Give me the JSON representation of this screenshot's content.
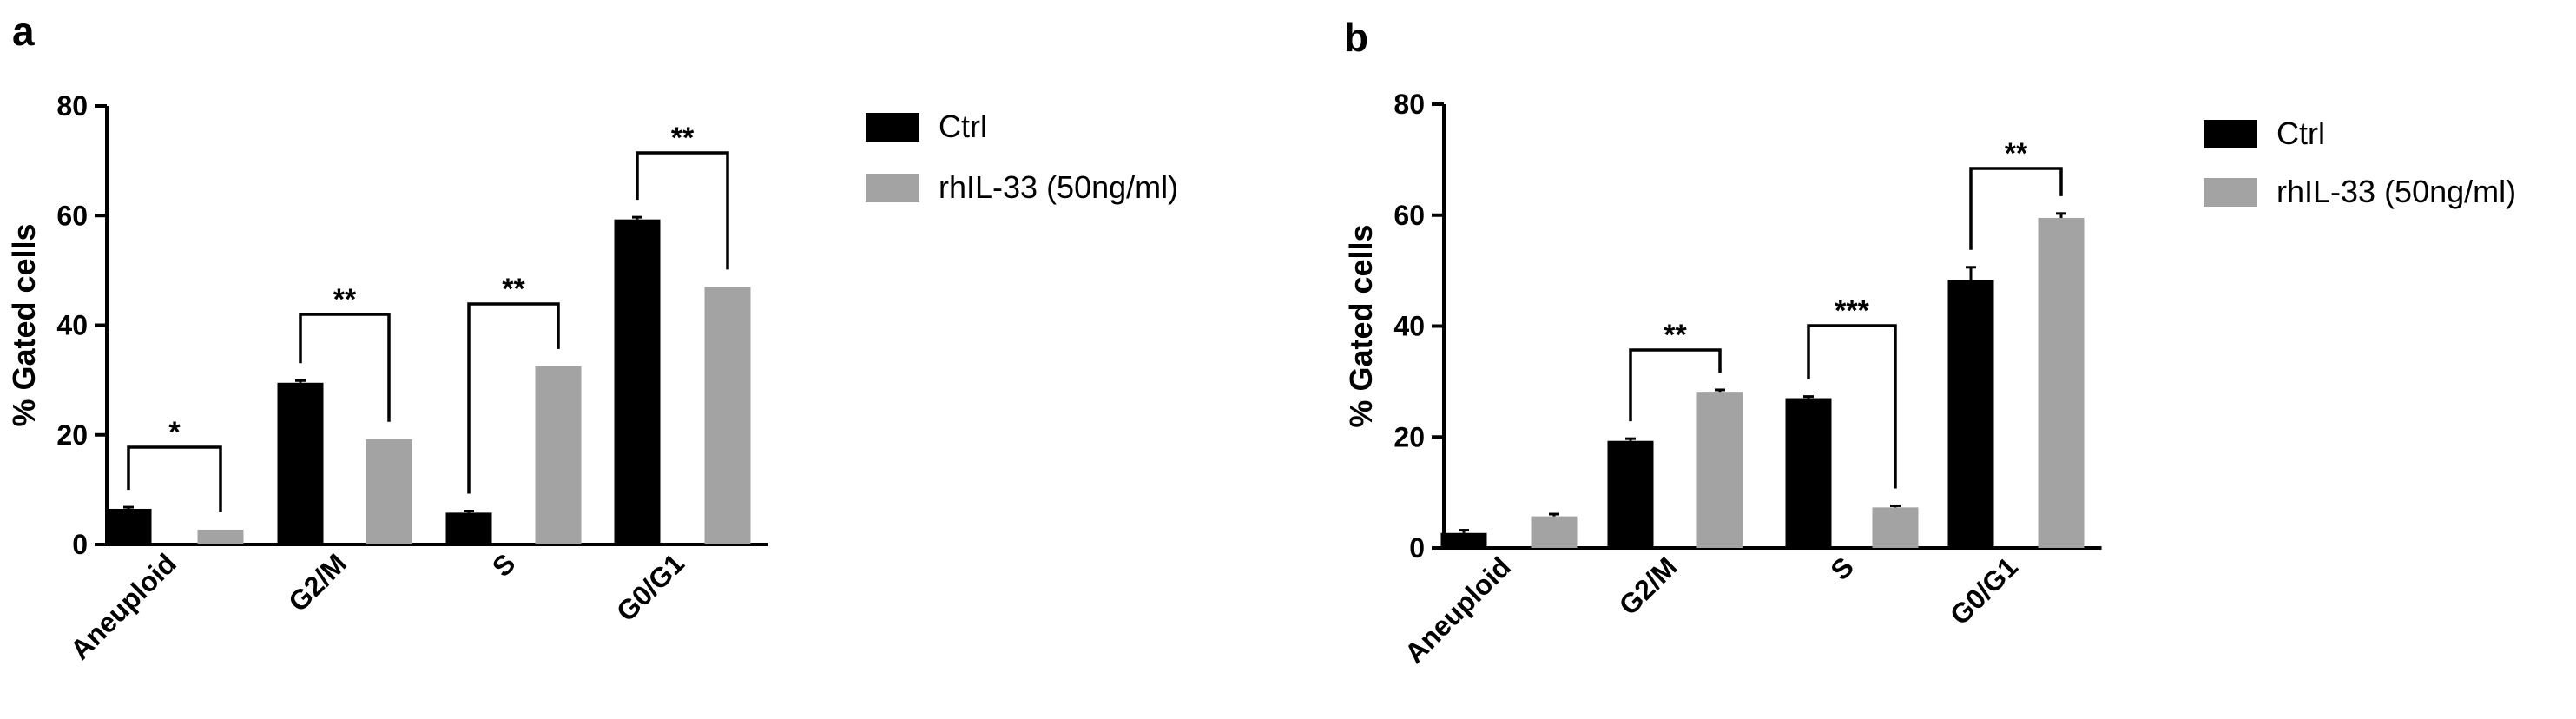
{
  "chart_data": [
    {
      "panel_label": "a",
      "type": "bar",
      "ylabel": "% Gated cells",
      "ylim": [
        0,
        80
      ],
      "yticks": [
        0,
        20,
        40,
        60,
        80
      ],
      "categories": [
        "Aneuploid",
        "G2/M",
        "S",
        "G0/G1"
      ],
      "series": [
        {
          "name": "Ctrl",
          "color": "#000000",
          "values": [
            6.5,
            29.5,
            5.8,
            59.3
          ],
          "errors": [
            0.3,
            0.4,
            0.3,
            0.4
          ]
        },
        {
          "name": "rhIL-33 (50ng/ml)",
          "color": "#a3a3a3",
          "values": [
            2.7,
            19.2,
            32.5,
            47.0
          ],
          "errors": [
            0,
            0,
            0,
            0
          ]
        }
      ],
      "significance": [
        "*",
        "**",
        "**",
        "**"
      ],
      "grid": false,
      "legend": "right"
    },
    {
      "panel_label": "b",
      "type": "bar",
      "ylabel": "% Gated cells",
      "ylim": [
        0,
        80
      ],
      "yticks": [
        0,
        20,
        40,
        60,
        80
      ],
      "categories": [
        "Aneuploid",
        "G2/M",
        "S",
        "G0/G1"
      ],
      "series": [
        {
          "name": "Ctrl",
          "color": "#000000",
          "values": [
            2.7,
            19.3,
            27.0,
            48.3
          ],
          "errors": [
            0.5,
            0.4,
            0.3,
            2.3
          ]
        },
        {
          "name": "rhIL-33 (50ng/ml)",
          "color": "#a3a3a3",
          "values": [
            5.7,
            28.0,
            7.3,
            59.5
          ],
          "errors": [
            0.4,
            0.5,
            0.3,
            0.8
          ]
        }
      ],
      "significance": [
        "",
        "**",
        "***",
        "**"
      ],
      "grid": false,
      "legend": "right"
    }
  ]
}
